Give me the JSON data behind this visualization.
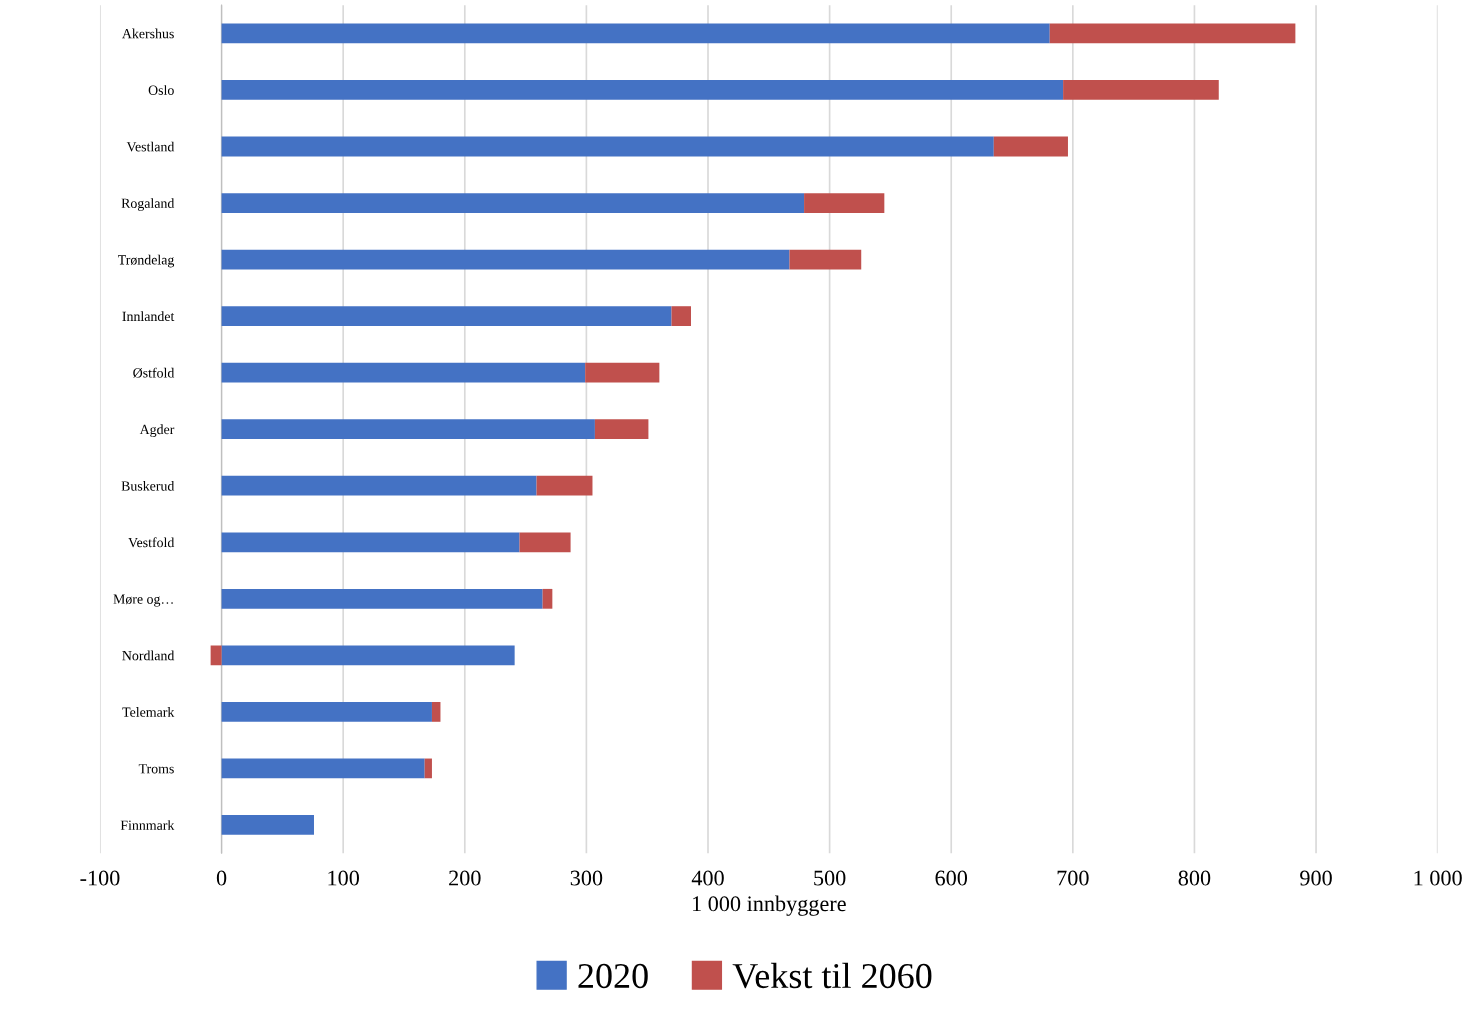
{
  "chart_data": {
    "type": "bar",
    "orientation": "horizontal",
    "stacked": true,
    "categories": [
      "Akershus",
      "Oslo",
      "Vestland",
      "Rogaland",
      "Trøndelag",
      "Innlandet",
      "Østfold",
      "Agder",
      "Buskerud",
      "Vestfold",
      "Møre og…",
      "Nordland",
      "Telemark",
      "Troms",
      "Finnmark"
    ],
    "series": [
      {
        "name": "2020",
        "color": "#4472c4",
        "values": [
          681,
          692,
          635,
          479,
          467,
          370,
          299,
          307,
          259,
          245,
          264,
          241,
          173,
          167,
          76
        ]
      },
      {
        "name": "Vekst til 2060",
        "color": "#c0504d",
        "values": [
          202,
          128,
          61,
          66,
          59,
          16,
          61,
          44,
          46,
          42,
          8,
          -9,
          7,
          6,
          0
        ]
      }
    ],
    "xlabel": "1 000 innbyggere",
    "xlim": [
      -100,
      1000
    ],
    "xticks": [
      -100,
      0,
      100,
      200,
      300,
      400,
      500,
      600,
      700,
      800,
      900,
      {
        "value": 1000,
        "label": "1 000"
      }
    ],
    "grid": "x",
    "legend": "bottom"
  }
}
